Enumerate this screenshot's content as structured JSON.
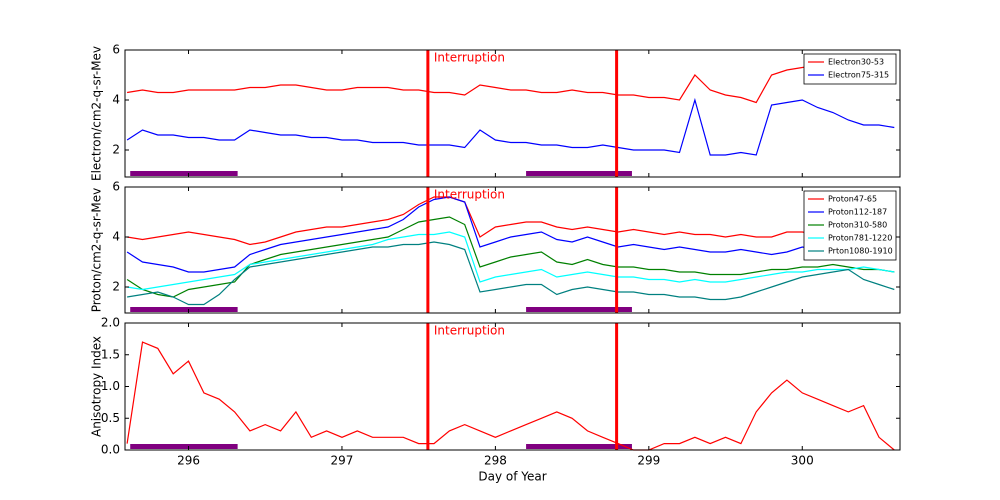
{
  "chart_data": [
    {
      "type": "line",
      "ylabel": "Electron/cm2-q-sr-Mev",
      "annotation": "Interruption",
      "interruptions": [
        297.56,
        298.79
      ],
      "interruption_color": "#ff0000",
      "highlight_intervals": [
        [
          295.62,
          296.32
        ],
        [
          298.2,
          298.89
        ]
      ],
      "highlight_color": "#800080",
      "xlim": [
        295.586,
        300.637
      ],
      "xticks": [
        296,
        297,
        298,
        299,
        300
      ],
      "ylim": [
        0.92,
        6
      ],
      "yticks": [
        2,
        4,
        6
      ],
      "legend": "upper right",
      "x": [
        295.6,
        295.7,
        295.8,
        295.9,
        296.0,
        296.1,
        296.2,
        296.3,
        296.4,
        296.5,
        296.6,
        296.7,
        296.8,
        296.9,
        297.0,
        297.1,
        297.2,
        297.3,
        297.4,
        297.5,
        297.6,
        297.7,
        297.8,
        297.9,
        298.0,
        298.1,
        298.2,
        298.3,
        298.4,
        298.5,
        298.6,
        298.7,
        298.8,
        298.9,
        299.0,
        299.1,
        299.2,
        299.3,
        299.4,
        299.5,
        299.6,
        299.7,
        299.8,
        299.9,
        300.0,
        300.1,
        300.2,
        300.3,
        300.4,
        300.5,
        300.6
      ],
      "series": [
        {
          "name": "Electron30-53",
          "color": "#ff0000",
          "values": [
            4.3,
            4.4,
            4.3,
            4.3,
            4.4,
            4.4,
            4.4,
            4.4,
            4.5,
            4.5,
            4.6,
            4.6,
            4.5,
            4.4,
            4.4,
            4.5,
            4.5,
            4.5,
            4.4,
            4.4,
            4.3,
            4.3,
            4.2,
            4.6,
            4.5,
            4.4,
            4.4,
            4.3,
            4.3,
            4.4,
            4.3,
            4.3,
            4.2,
            4.2,
            4.1,
            4.1,
            4.0,
            5.0,
            4.4,
            4.2,
            4.1,
            3.9,
            5.0,
            5.2,
            5.3,
            5.4,
            5.3,
            5.0,
            4.9,
            4.8,
            4.8
          ]
        },
        {
          "name": "Electron75-315",
          "color": "#0000ff",
          "values": [
            2.4,
            2.8,
            2.6,
            2.6,
            2.5,
            2.5,
            2.4,
            2.4,
            2.8,
            2.7,
            2.6,
            2.6,
            2.5,
            2.5,
            2.4,
            2.4,
            2.3,
            2.3,
            2.3,
            2.2,
            2.2,
            2.2,
            2.1,
            2.8,
            2.4,
            2.3,
            2.3,
            2.2,
            2.2,
            2.1,
            2.1,
            2.2,
            2.1,
            2.0,
            2.0,
            2.0,
            1.9,
            4.0,
            1.8,
            1.8,
            1.9,
            1.8,
            3.8,
            3.9,
            4.0,
            3.7,
            3.5,
            3.2,
            3.0,
            3.0,
            2.9
          ]
        }
      ]
    },
    {
      "type": "line",
      "ylabel": "Proton/cm2-q-sr-Mev",
      "annotation": "Interruption",
      "interruptions": [
        297.56,
        298.79
      ],
      "interruption_color": "#ff0000",
      "highlight_intervals": [
        [
          295.62,
          296.32
        ],
        [
          298.2,
          298.89
        ]
      ],
      "highlight_color": "#800080",
      "xlim": [
        295.586,
        300.637
      ],
      "xticks": [
        296,
        297,
        298,
        299,
        300
      ],
      "ylim": [
        0.96,
        6
      ],
      "yticks": [
        2,
        4,
        6
      ],
      "legend": "upper right",
      "x": [
        295.6,
        295.7,
        295.8,
        295.9,
        296.0,
        296.1,
        296.2,
        296.3,
        296.4,
        296.5,
        296.6,
        296.7,
        296.8,
        296.9,
        297.0,
        297.1,
        297.2,
        297.3,
        297.4,
        297.5,
        297.6,
        297.7,
        297.8,
        297.9,
        298.0,
        298.1,
        298.2,
        298.3,
        298.4,
        298.5,
        298.6,
        298.7,
        298.8,
        298.9,
        299.0,
        299.1,
        299.2,
        299.3,
        299.4,
        299.5,
        299.6,
        299.7,
        299.8,
        299.9,
        300.0,
        300.1,
        300.2,
        300.3,
        300.4,
        300.5,
        300.6
      ],
      "series": [
        {
          "name": "Proton47-65",
          "color": "#ff0000",
          "values": [
            4.0,
            3.9,
            4.0,
            4.1,
            4.2,
            4.1,
            4.0,
            3.9,
            3.7,
            3.8,
            4.0,
            4.2,
            4.3,
            4.4,
            4.4,
            4.5,
            4.6,
            4.7,
            4.9,
            5.3,
            5.6,
            5.6,
            5.4,
            4.0,
            4.4,
            4.5,
            4.6,
            4.6,
            4.4,
            4.3,
            4.4,
            4.3,
            4.2,
            4.3,
            4.2,
            4.1,
            4.2,
            4.1,
            4.1,
            4.0,
            4.1,
            4.0,
            4.0,
            4.2,
            4.2,
            4.1,
            4.2,
            4.2,
            4.1,
            4.3,
            4.2
          ]
        },
        {
          "name": "Proton112-187",
          "color": "#0000ff",
          "values": [
            3.4,
            3.0,
            2.9,
            2.8,
            2.6,
            2.6,
            2.7,
            2.8,
            3.3,
            3.5,
            3.7,
            3.8,
            3.9,
            4.0,
            4.1,
            4.2,
            4.3,
            4.4,
            4.7,
            5.2,
            5.5,
            5.6,
            5.4,
            3.6,
            3.8,
            4.0,
            4.1,
            4.2,
            3.9,
            3.8,
            4.0,
            3.8,
            3.6,
            3.7,
            3.6,
            3.5,
            3.6,
            3.5,
            3.4,
            3.4,
            3.5,
            3.4,
            3.3,
            3.4,
            3.6,
            3.5,
            3.6,
            3.6,
            3.5,
            3.6,
            3.5
          ]
        },
        {
          "name": "Proton310-580",
          "color": "#008000",
          "values": [
            2.3,
            1.9,
            1.7,
            1.6,
            1.9,
            2.0,
            2.1,
            2.2,
            2.9,
            3.1,
            3.3,
            3.4,
            3.5,
            3.6,
            3.7,
            3.8,
            3.9,
            4.0,
            4.3,
            4.6,
            4.7,
            4.8,
            4.5,
            2.8,
            3.0,
            3.2,
            3.3,
            3.4,
            3.0,
            2.9,
            3.1,
            2.9,
            2.8,
            2.8,
            2.7,
            2.7,
            2.6,
            2.6,
            2.5,
            2.5,
            2.5,
            2.6,
            2.7,
            2.7,
            2.8,
            2.8,
            2.9,
            2.8,
            2.7,
            2.7,
            2.6
          ]
        },
        {
          "name": "Proton781-1220",
          "color": "#00ffff",
          "values": [
            2.0,
            1.9,
            2.0,
            2.1,
            2.2,
            2.3,
            2.4,
            2.5,
            2.9,
            3.0,
            3.1,
            3.2,
            3.3,
            3.4,
            3.5,
            3.6,
            3.7,
            3.9,
            4.0,
            4.1,
            4.1,
            4.2,
            4.0,
            2.2,
            2.4,
            2.5,
            2.6,
            2.7,
            2.4,
            2.5,
            2.6,
            2.5,
            2.4,
            2.4,
            2.3,
            2.3,
            2.2,
            2.3,
            2.2,
            2.2,
            2.3,
            2.4,
            2.5,
            2.6,
            2.6,
            2.7,
            2.7,
            2.7,
            2.8,
            2.7,
            2.6
          ]
        },
        {
          "name": "Prton1080-1910",
          "color": "#008080",
          "values": [
            1.6,
            1.7,
            1.8,
            1.6,
            1.3,
            1.3,
            1.7,
            2.3,
            2.8,
            2.9,
            3.0,
            3.1,
            3.2,
            3.3,
            3.4,
            3.5,
            3.6,
            3.6,
            3.7,
            3.7,
            3.8,
            3.7,
            3.5,
            1.8,
            1.9,
            2.0,
            2.1,
            2.1,
            1.7,
            1.9,
            2.0,
            1.9,
            1.8,
            1.8,
            1.7,
            1.7,
            1.6,
            1.6,
            1.5,
            1.5,
            1.6,
            1.8,
            2.0,
            2.2,
            2.4,
            2.5,
            2.6,
            2.7,
            2.3,
            2.1,
            1.9
          ]
        }
      ]
    },
    {
      "type": "line",
      "ylabel": "Anisotropy Index",
      "xlabel": "Day of Year",
      "annotation": "Interruption",
      "interruptions": [
        297.56,
        298.79
      ],
      "interruption_color": "#ff0000",
      "highlight_intervals": [
        [
          295.62,
          296.32
        ],
        [
          298.2,
          298.89
        ]
      ],
      "highlight_color": "#800080",
      "xlim": [
        295.586,
        300.637
      ],
      "xticks": [
        296,
        297,
        298,
        299,
        300
      ],
      "ylim": [
        0,
        2
      ],
      "yticks": [
        {
          "value": 0,
          "label": "0.0"
        },
        0.5,
        {
          "value": 1,
          "label": "1.0"
        },
        1.5,
        {
          "value": 2,
          "label": "2.0"
        }
      ],
      "x": [
        295.6,
        295.7,
        295.8,
        295.9,
        296.0,
        296.1,
        296.2,
        296.3,
        296.4,
        296.5,
        296.6,
        296.7,
        296.8,
        296.9,
        297.0,
        297.1,
        297.2,
        297.3,
        297.4,
        297.5,
        297.6,
        297.7,
        297.8,
        297.9,
        298.0,
        298.1,
        298.2,
        298.3,
        298.4,
        298.5,
        298.6,
        298.7,
        298.8,
        298.9,
        299.0,
        299.1,
        299.2,
        299.3,
        299.4,
        299.5,
        299.6,
        299.7,
        299.8,
        299.9,
        300.0,
        300.1,
        300.2,
        300.3,
        300.4,
        300.5,
        300.6
      ],
      "series": [
        {
          "color": "#ff0000",
          "values": [
            0.1,
            1.7,
            1.6,
            1.2,
            1.4,
            0.9,
            0.8,
            0.6,
            0.3,
            0.4,
            0.3,
            0.6,
            0.2,
            0.3,
            0.2,
            0.3,
            0.2,
            0.2,
            0.2,
            0.1,
            0.1,
            0.3,
            0.4,
            0.3,
            0.2,
            0.3,
            0.4,
            0.5,
            0.6,
            0.5,
            0.3,
            0.2,
            0.1,
            0.0,
            0.0,
            0.1,
            0.1,
            0.2,
            0.1,
            0.2,
            0.1,
            0.6,
            0.9,
            1.1,
            0.9,
            0.8,
            0.7,
            0.6,
            0.7,
            0.2,
            0.0
          ]
        }
      ]
    }
  ]
}
